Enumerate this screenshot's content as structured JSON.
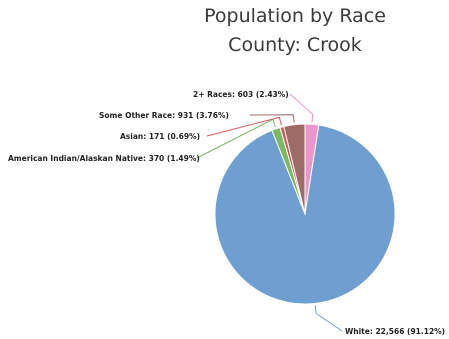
{
  "chart_data": {
    "type": "pie",
    "title": "Population by Race",
    "subtitle": "County: Crook",
    "slices": [
      {
        "name": "White",
        "value": 22566,
        "percent": 91.12,
        "color": "#6f9fd0",
        "label": "White: 22,566 (91.12%)"
      },
      {
        "name": "American Indian/Alaskan Native",
        "value": 370,
        "percent": 1.49,
        "color": "#79b95f",
        "label": "American Indian/Alaskan Native: 370 (1.49%)"
      },
      {
        "name": "Asian",
        "value": 171,
        "percent": 0.69,
        "color": "#d35a5a",
        "label": "Asian: 171 (0.69%)"
      },
      {
        "name": "Some Other Race",
        "value": 931,
        "percent": 3.76,
        "color": "#9e6b66",
        "label": "Some Other Race: 931 (3.76%)"
      },
      {
        "name": "2+ Races",
        "value": 603,
        "percent": 2.43,
        "color": "#ee94cd",
        "label": "2+ Races: 603 (2.43%)"
      }
    ]
  }
}
